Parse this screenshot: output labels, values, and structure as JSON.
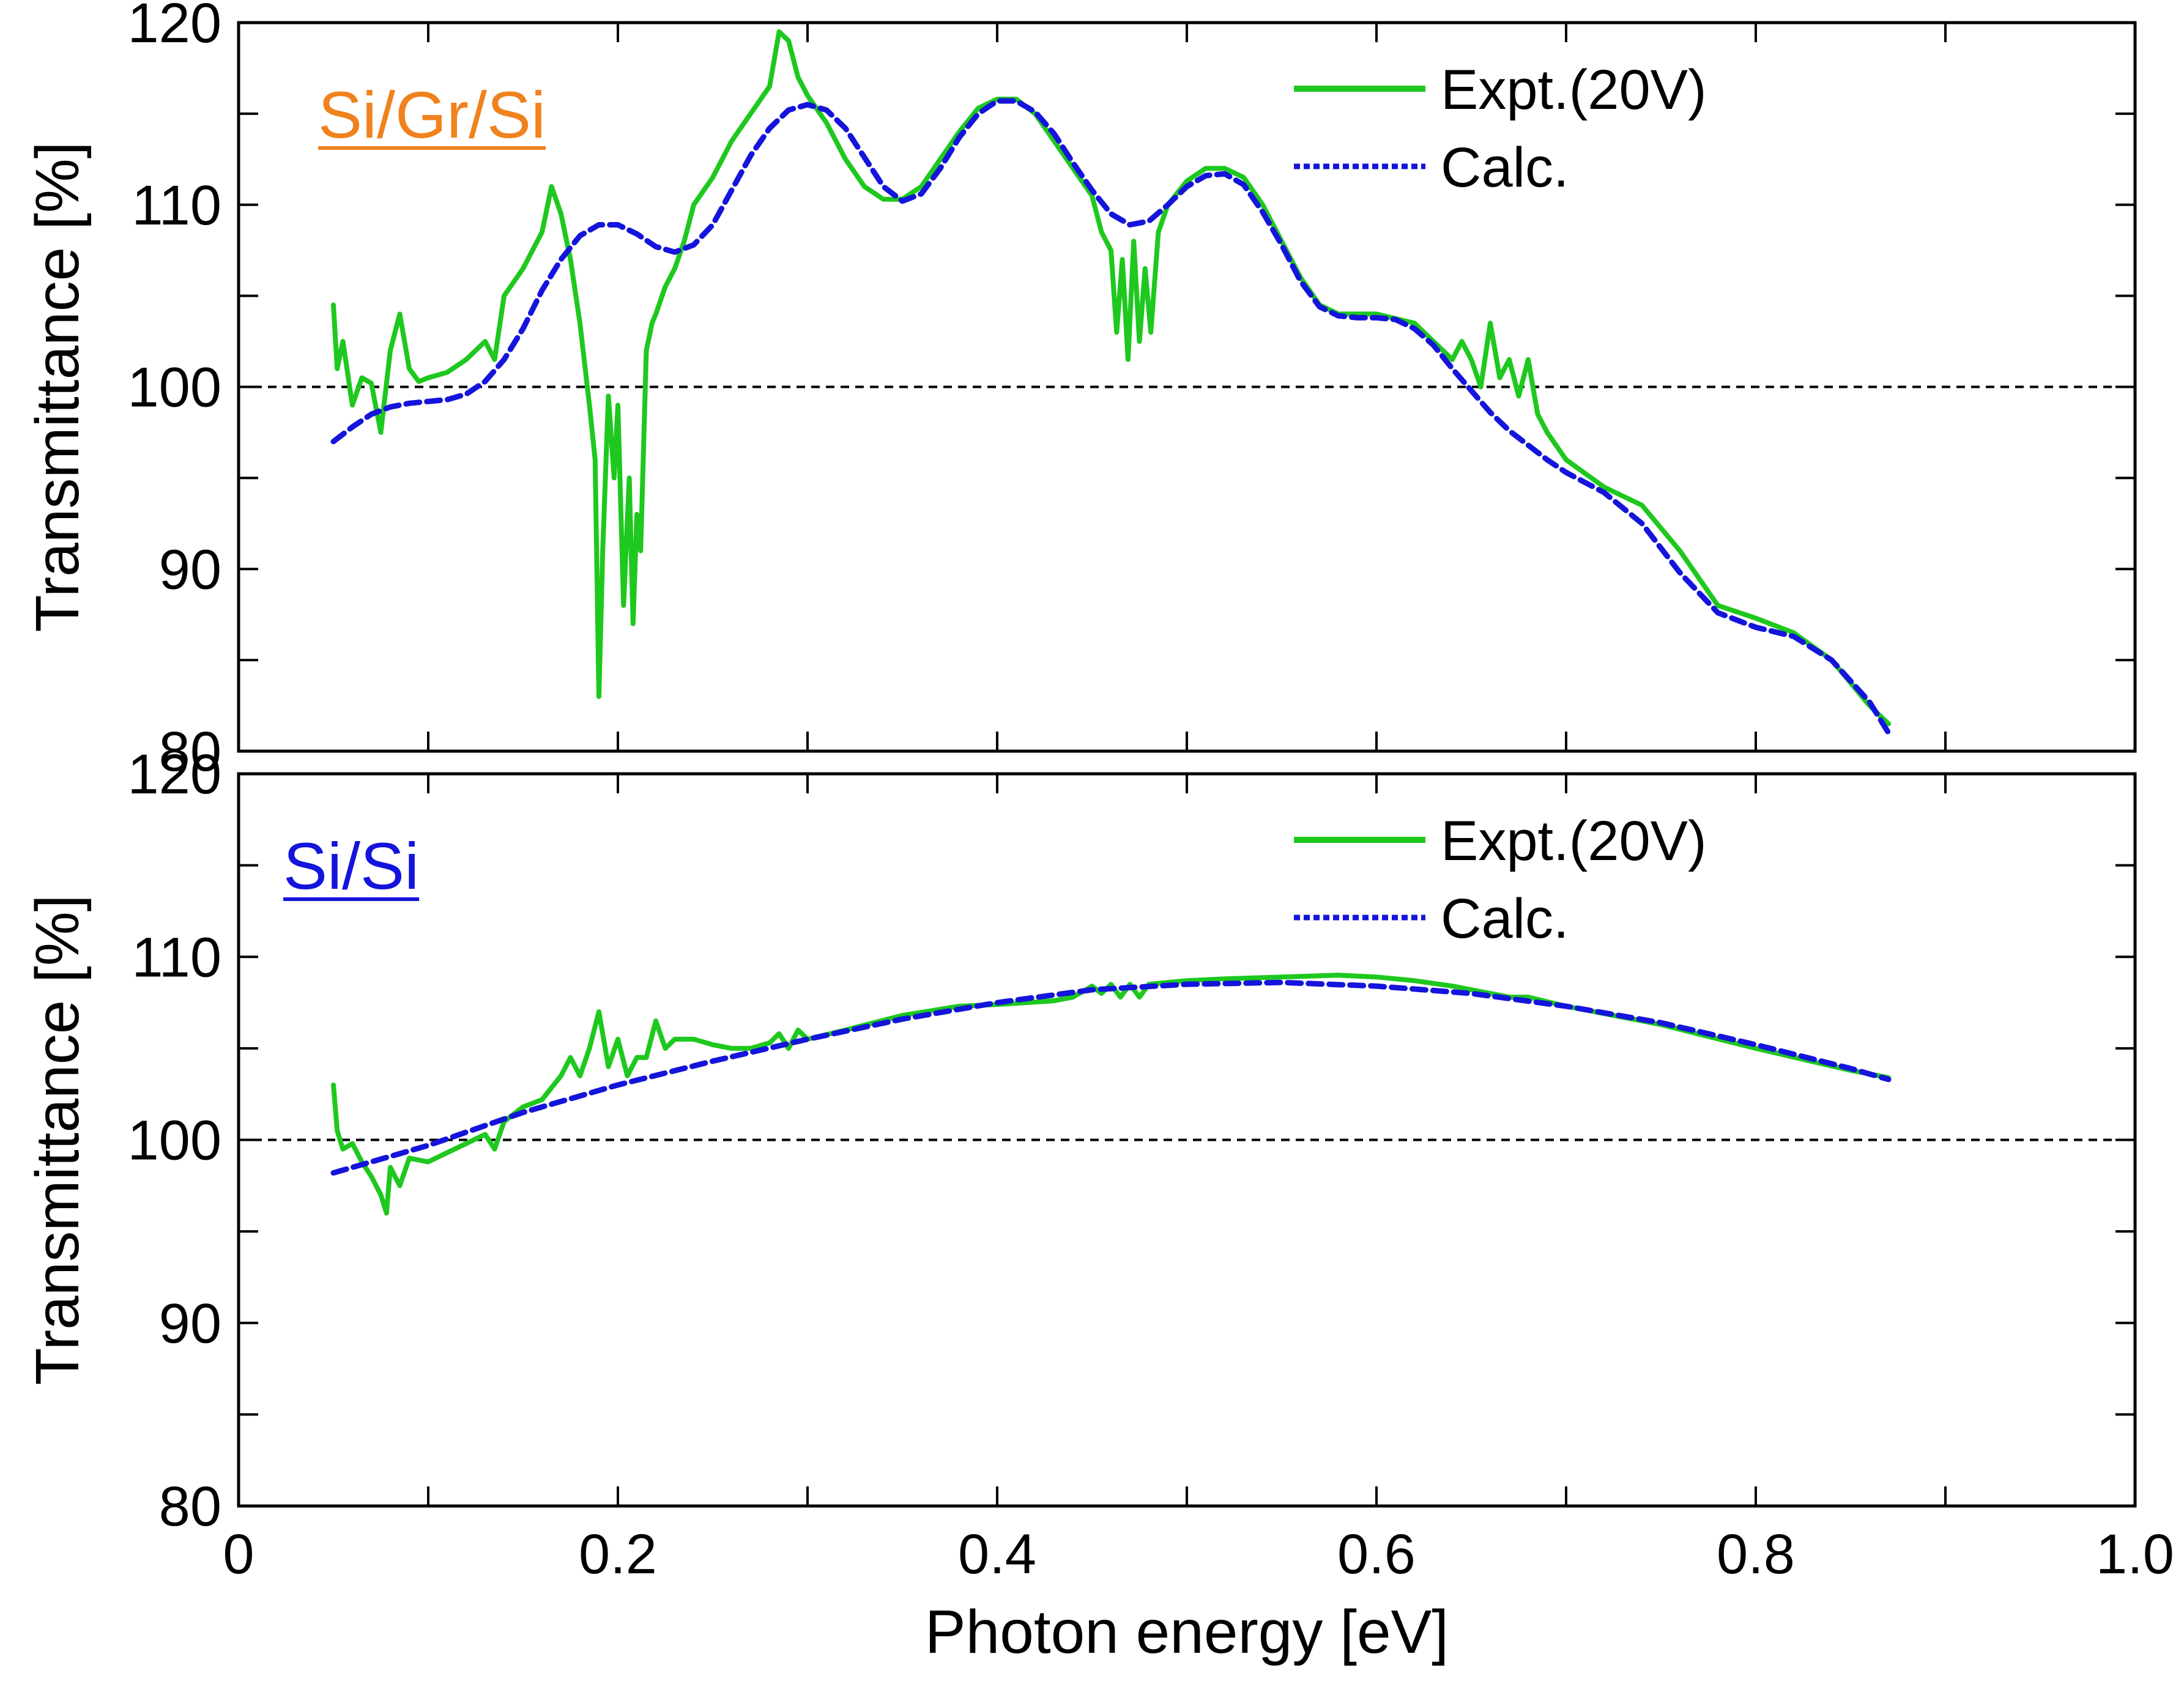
{
  "chart_data": [
    {
      "type": "line",
      "panel_label": "Si/Gr/Si",
      "panel_label_color": "#f0821e",
      "ylabel": "Transmittance [%]",
      "xlabel": "",
      "xlim": [
        0,
        1.0
      ],
      "ylim": [
        80,
        120
      ],
      "yticks": [
        "80",
        "90",
        "100",
        "110",
        "120"
      ],
      "reference_line": 100,
      "legend_position": "top-right",
      "series": [
        {
          "name": "Expt.(20V)",
          "color": "#1ec81e",
          "style": "solid",
          "x": [
            0.05,
            0.052,
            0.055,
            0.06,
            0.065,
            0.07,
            0.075,
            0.08,
            0.085,
            0.09,
            0.095,
            0.1,
            0.11,
            0.12,
            0.13,
            0.135,
            0.14,
            0.15,
            0.16,
            0.165,
            0.17,
            0.175,
            0.18,
            0.185,
            0.188,
            0.19,
            0.192,
            0.195,
            0.198,
            0.2,
            0.203,
            0.206,
            0.208,
            0.21,
            0.212,
            0.215,
            0.218,
            0.22,
            0.225,
            0.23,
            0.235,
            0.24,
            0.25,
            0.26,
            0.27,
            0.28,
            0.285,
            0.29,
            0.295,
            0.3,
            0.31,
            0.32,
            0.33,
            0.34,
            0.35,
            0.36,
            0.37,
            0.38,
            0.39,
            0.4,
            0.41,
            0.42,
            0.43,
            0.44,
            0.45,
            0.455,
            0.46,
            0.463,
            0.466,
            0.469,
            0.472,
            0.475,
            0.478,
            0.481,
            0.485,
            0.49,
            0.5,
            0.51,
            0.52,
            0.53,
            0.54,
            0.55,
            0.56,
            0.57,
            0.58,
            0.6,
            0.62,
            0.63,
            0.64,
            0.645,
            0.65,
            0.655,
            0.66,
            0.665,
            0.67,
            0.675,
            0.68,
            0.685,
            0.69,
            0.7,
            0.72,
            0.74,
            0.76,
            0.78,
            0.8,
            0.82,
            0.84,
            0.86,
            0.87
          ],
          "values": [
            104.5,
            101.0,
            102.5,
            99.0,
            100.5,
            100.2,
            97.5,
            102.0,
            104.0,
            101.0,
            100.3,
            100.5,
            100.8,
            101.5,
            102.5,
            101.5,
            105.0,
            106.5,
            108.5,
            111.0,
            109.5,
            107.0,
            103.5,
            99.0,
            96.0,
            83.0,
            91.0,
            99.5,
            95.0,
            99.0,
            88.0,
            95.0,
            87.0,
            93.0,
            91.0,
            102.0,
            103.5,
            104.0,
            105.5,
            106.5,
            108.0,
            110.0,
            111.5,
            113.5,
            115.0,
            116.5,
            119.5,
            119.0,
            117.0,
            116.0,
            114.5,
            112.5,
            111.0,
            110.3,
            110.3,
            111.0,
            112.5,
            114.0,
            115.3,
            115.8,
            115.8,
            115.0,
            113.5,
            112.0,
            110.5,
            108.5,
            107.5,
            103.0,
            107.0,
            101.5,
            108.0,
            102.5,
            106.5,
            103.0,
            108.5,
            110.0,
            111.3,
            112.0,
            112.0,
            111.5,
            110.0,
            108.0,
            106.0,
            104.5,
            104.0,
            104.0,
            103.5,
            102.5,
            101.5,
            102.5,
            101.5,
            100.0,
            103.5,
            100.5,
            101.5,
            99.5,
            101.5,
            98.5,
            97.5,
            96.0,
            94.5,
            93.5,
            91.0,
            88.0,
            87.3,
            86.5,
            85.0,
            82.5,
            81.5
          ]
        },
        {
          "name": "Calc.",
          "color": "#1414dc",
          "style": "dashed",
          "x": [
            0.05,
            0.06,
            0.07,
            0.08,
            0.09,
            0.1,
            0.11,
            0.12,
            0.13,
            0.14,
            0.15,
            0.16,
            0.17,
            0.18,
            0.19,
            0.2,
            0.21,
            0.22,
            0.23,
            0.24,
            0.25,
            0.26,
            0.27,
            0.28,
            0.29,
            0.3,
            0.31,
            0.32,
            0.33,
            0.34,
            0.35,
            0.36,
            0.37,
            0.38,
            0.39,
            0.4,
            0.41,
            0.42,
            0.43,
            0.44,
            0.45,
            0.46,
            0.47,
            0.48,
            0.49,
            0.5,
            0.51,
            0.52,
            0.53,
            0.54,
            0.55,
            0.56,
            0.57,
            0.58,
            0.59,
            0.6,
            0.61,
            0.62,
            0.63,
            0.64,
            0.65,
            0.66,
            0.67,
            0.68,
            0.69,
            0.7,
            0.72,
            0.74,
            0.76,
            0.78,
            0.8,
            0.82,
            0.84,
            0.86,
            0.87
          ],
          "values": [
            97.0,
            97.8,
            98.5,
            98.9,
            99.1,
            99.2,
            99.3,
            99.6,
            100.3,
            101.5,
            103.2,
            105.3,
            107.0,
            108.3,
            108.9,
            108.9,
            108.4,
            107.7,
            107.4,
            107.8,
            108.9,
            110.8,
            112.7,
            114.2,
            115.2,
            115.5,
            115.2,
            114.2,
            112.6,
            111.0,
            110.2,
            110.6,
            112.0,
            113.7,
            115.0,
            115.7,
            115.7,
            115.1,
            113.9,
            112.3,
            110.8,
            109.5,
            108.9,
            109.1,
            110.0,
            111.0,
            111.6,
            111.7,
            111.1,
            109.6,
            107.8,
            105.8,
            104.4,
            103.9,
            103.8,
            103.8,
            103.7,
            103.2,
            102.3,
            101.0,
            99.8,
            98.6,
            97.6,
            96.8,
            96.0,
            95.3,
            94.2,
            92.5,
            89.8,
            87.6,
            86.8,
            86.3,
            85.0,
            82.7,
            81.0
          ]
        }
      ]
    },
    {
      "type": "line",
      "panel_label": "Si/Si",
      "panel_label_color": "#1414dc",
      "ylabel": "Transmittance [%]",
      "xlabel": "Photon energy [eV]",
      "xlim": [
        0,
        1.0
      ],
      "ylim": [
        80,
        120
      ],
      "xticks": [
        "0",
        "0.2",
        "0.4",
        "0.6",
        "0.8",
        "1.0"
      ],
      "yticks": [
        "80",
        "90",
        "100",
        "110",
        "120"
      ],
      "reference_line": 100,
      "legend_position": "top-right",
      "series": [
        {
          "name": "Expt.(20V)",
          "color": "#1ec81e",
          "style": "solid",
          "x": [
            0.05,
            0.052,
            0.055,
            0.06,
            0.065,
            0.07,
            0.075,
            0.078,
            0.08,
            0.085,
            0.09,
            0.1,
            0.11,
            0.12,
            0.13,
            0.135,
            0.14,
            0.15,
            0.16,
            0.17,
            0.175,
            0.18,
            0.185,
            0.19,
            0.195,
            0.2,
            0.205,
            0.21,
            0.215,
            0.22,
            0.225,
            0.23,
            0.24,
            0.25,
            0.26,
            0.27,
            0.28,
            0.285,
            0.29,
            0.295,
            0.3,
            0.32,
            0.35,
            0.38,
            0.4,
            0.43,
            0.44,
            0.45,
            0.455,
            0.46,
            0.465,
            0.47,
            0.475,
            0.48,
            0.49,
            0.5,
            0.52,
            0.55,
            0.58,
            0.6,
            0.62,
            0.64,
            0.65,
            0.66,
            0.67,
            0.68,
            0.7,
            0.75,
            0.8,
            0.85,
            0.87
          ],
          "values": [
            103.0,
            100.5,
            99.5,
            99.8,
            98.8,
            98.0,
            97.0,
            96.0,
            98.5,
            97.5,
            99.0,
            98.8,
            99.3,
            99.8,
            100.3,
            99.5,
            101.0,
            101.8,
            102.2,
            103.5,
            104.5,
            103.5,
            105.0,
            107.0,
            104.0,
            105.5,
            103.5,
            104.5,
            104.5,
            106.5,
            105.0,
            105.5,
            105.5,
            105.2,
            105.0,
            105.0,
            105.3,
            105.8,
            105.0,
            106.0,
            105.5,
            106.0,
            106.8,
            107.3,
            107.4,
            107.6,
            107.8,
            108.4,
            108.0,
            108.5,
            107.8,
            108.5,
            107.8,
            108.5,
            108.6,
            108.7,
            108.8,
            108.9,
            109.0,
            108.9,
            108.7,
            108.4,
            108.2,
            108.0,
            107.8,
            107.8,
            107.3,
            106.3,
            105.0,
            103.8,
            103.4
          ]
        },
        {
          "name": "Calc.",
          "color": "#1414dc",
          "style": "dashed",
          "x": [
            0.05,
            0.1,
            0.15,
            0.2,
            0.25,
            0.3,
            0.35,
            0.4,
            0.45,
            0.5,
            0.55,
            0.6,
            0.65,
            0.7,
            0.75,
            0.8,
            0.85,
            0.87
          ],
          "values": [
            98.2,
            99.7,
            101.5,
            103.0,
            104.3,
            105.5,
            106.6,
            107.5,
            108.2,
            108.5,
            108.6,
            108.4,
            108.0,
            107.3,
            106.4,
            105.2,
            103.9,
            103.3
          ]
        }
      ]
    }
  ]
}
